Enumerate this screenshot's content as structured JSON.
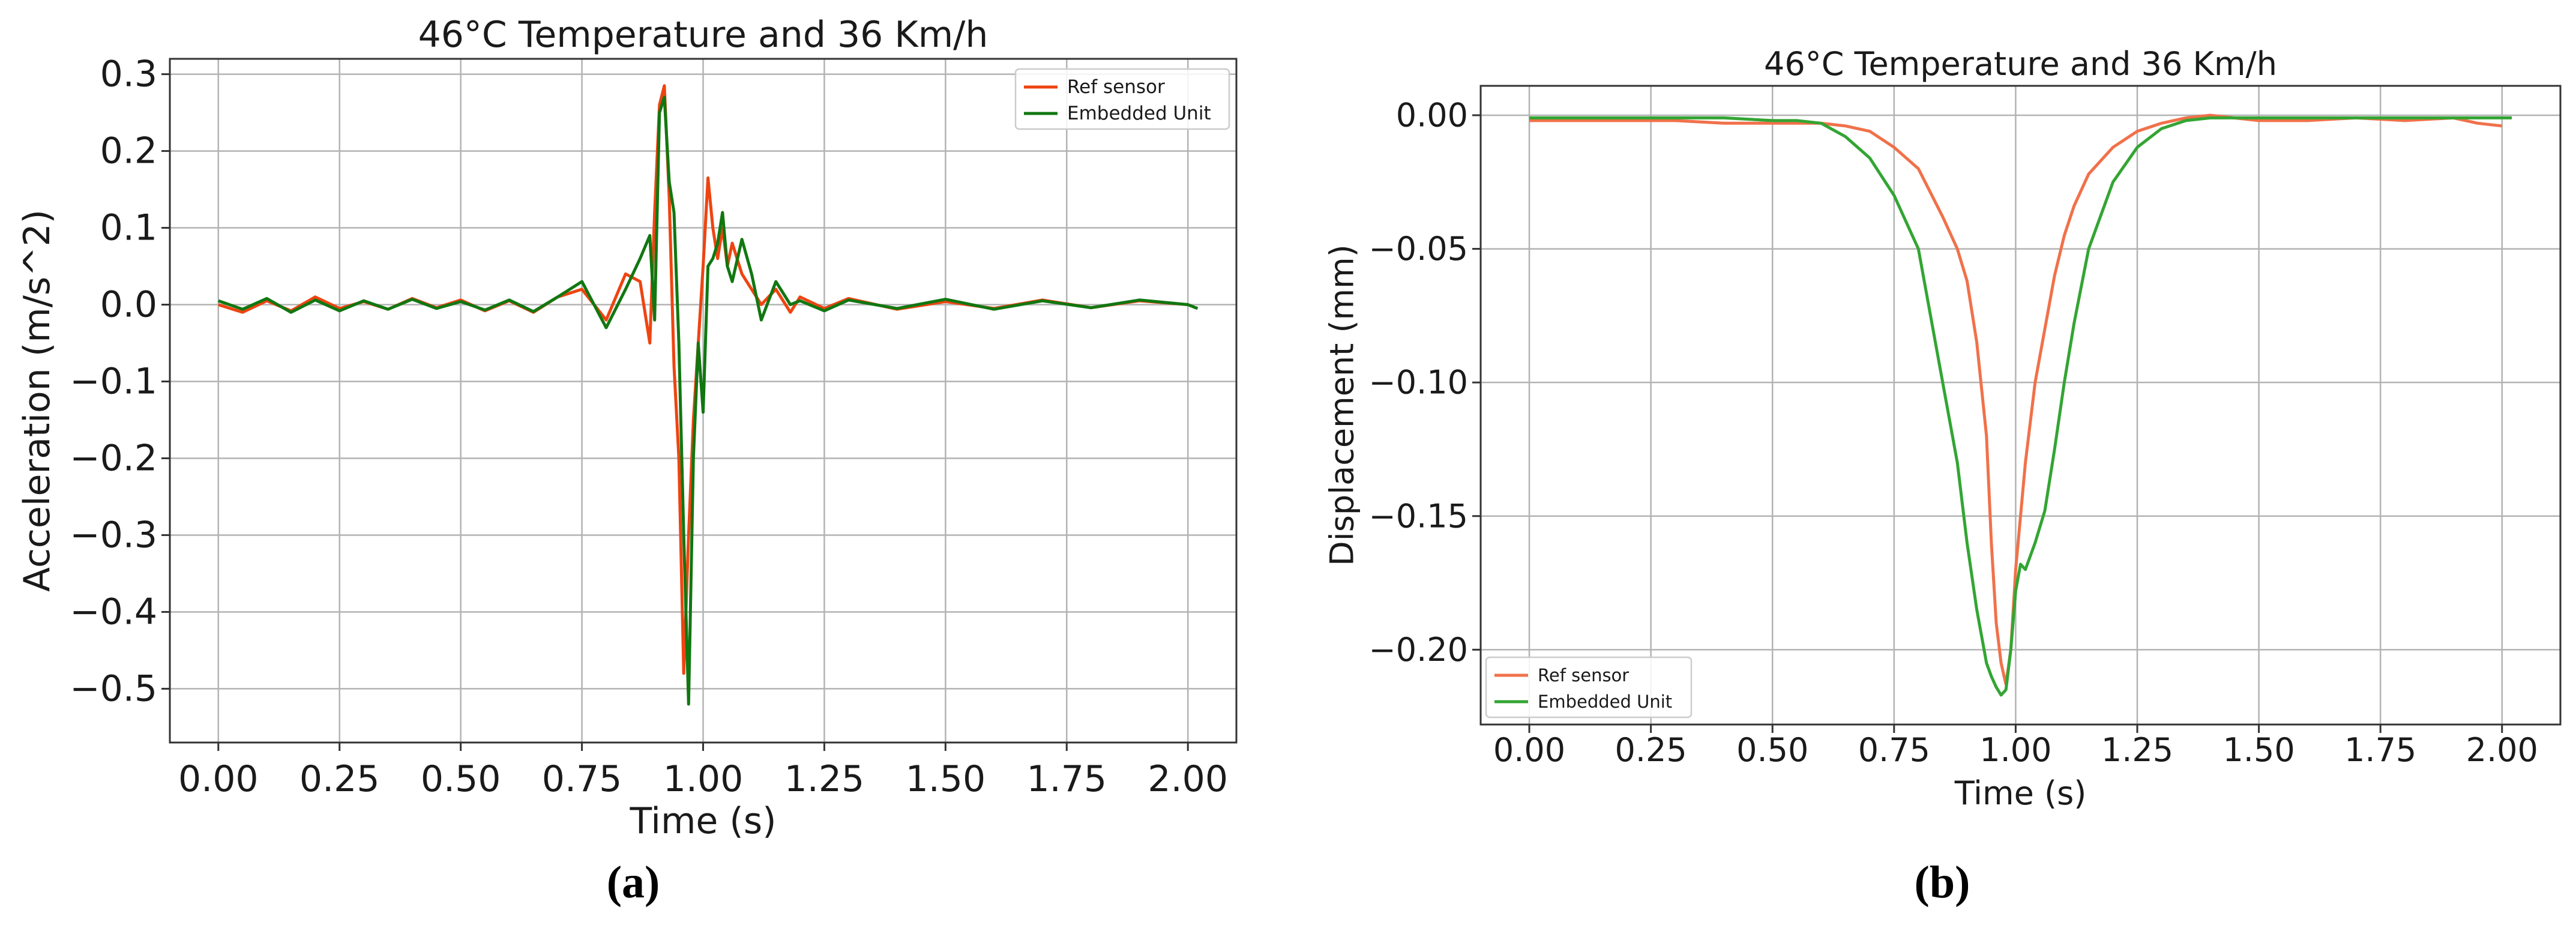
{
  "figure": {
    "panels": [
      {
        "caption": "(a)"
      },
      {
        "caption": "(b)"
      }
    ]
  },
  "colors": {
    "ref_a": "#ee4411",
    "emb_a": "#117711",
    "ref_b": "#f0714a",
    "emb_b": "#33a533",
    "grid": "#b3b3b3"
  },
  "chart_data": [
    {
      "type": "line",
      "title": "46°C Temperature and 36 Km/h",
      "xlabel": "Time (s)",
      "ylabel": "Acceleration (m/s^2)",
      "xlim": [
        -0.1,
        2.1
      ],
      "ylim": [
        -0.57,
        0.32
      ],
      "xticks": [
        0,
        0.25,
        0.5,
        0.75,
        1.0,
        1.25,
        1.5,
        1.75,
        2.0
      ],
      "xtick_labels": [
        "0.00",
        "0.25",
        "0.50",
        "0.75",
        "1.00",
        "1.25",
        "1.50",
        "1.75",
        "2.00"
      ],
      "yticks": [
        0.3,
        0.2,
        0.1,
        0.0,
        -0.1,
        -0.2,
        -0.3,
        -0.4,
        -0.5
      ],
      "ytick_labels": [
        "0.3",
        "0.2",
        "0.1",
        "0.0",
        "−0.1",
        "−0.2",
        "−0.3",
        "−0.4",
        "−0.5"
      ],
      "grid": true,
      "legend_position": "top-right",
      "series": [
        {
          "name": "Ref sensor",
          "x": [
            0.0,
            0.05,
            0.1,
            0.15,
            0.2,
            0.25,
            0.3,
            0.35,
            0.4,
            0.45,
            0.5,
            0.55,
            0.6,
            0.65,
            0.7,
            0.75,
            0.8,
            0.84,
            0.87,
            0.89,
            0.9,
            0.91,
            0.92,
            0.93,
            0.94,
            0.95,
            0.96,
            0.97,
            0.98,
            0.99,
            1.0,
            1.01,
            1.02,
            1.03,
            1.04,
            1.05,
            1.06,
            1.08,
            1.1,
            1.12,
            1.15,
            1.18,
            1.2,
            1.25,
            1.3,
            1.4,
            1.5,
            1.6,
            1.7,
            1.8,
            1.9,
            2.0
          ],
          "y": [
            0.0,
            -0.01,
            0.005,
            -0.008,
            0.01,
            -0.005,
            0.004,
            -0.006,
            0.008,
            -0.004,
            0.006,
            -0.008,
            0.005,
            -0.01,
            0.01,
            0.02,
            -0.02,
            0.04,
            0.03,
            -0.05,
            0.12,
            0.26,
            0.285,
            0.14,
            -0.08,
            -0.2,
            -0.48,
            -0.3,
            -0.15,
            -0.05,
            0.05,
            0.165,
            0.1,
            0.06,
            0.1,
            0.05,
            0.08,
            0.04,
            0.02,
            0.0,
            0.02,
            -0.01,
            0.01,
            -0.005,
            0.008,
            -0.006,
            0.004,
            -0.005,
            0.006,
            -0.004,
            0.005,
            0.0
          ]
        },
        {
          "name": "Embedded Unit",
          "x": [
            0.0,
            0.05,
            0.1,
            0.15,
            0.2,
            0.25,
            0.3,
            0.35,
            0.4,
            0.45,
            0.5,
            0.55,
            0.6,
            0.65,
            0.7,
            0.75,
            0.8,
            0.84,
            0.87,
            0.89,
            0.9,
            0.91,
            0.92,
            0.93,
            0.94,
            0.95,
            0.96,
            0.97,
            0.98,
            0.99,
            1.0,
            1.01,
            1.02,
            1.03,
            1.04,
            1.05,
            1.06,
            1.08,
            1.1,
            1.12,
            1.15,
            1.18,
            1.2,
            1.25,
            1.3,
            1.4,
            1.5,
            1.6,
            1.7,
            1.8,
            1.9,
            2.0,
            2.02
          ],
          "y": [
            0.005,
            -0.006,
            0.008,
            -0.01,
            0.006,
            -0.008,
            0.005,
            -0.006,
            0.007,
            -0.005,
            0.004,
            -0.007,
            0.006,
            -0.009,
            0.01,
            0.03,
            -0.03,
            0.02,
            0.06,
            0.09,
            -0.02,
            0.25,
            0.27,
            0.16,
            0.12,
            -0.05,
            -0.3,
            -0.52,
            -0.2,
            -0.05,
            -0.14,
            0.05,
            0.06,
            0.08,
            0.12,
            0.05,
            0.03,
            0.085,
            0.04,
            -0.02,
            0.03,
            0.0,
            0.005,
            -0.008,
            0.006,
            -0.005,
            0.007,
            -0.006,
            0.005,
            -0.004,
            0.006,
            0.0,
            -0.005
          ]
        }
      ]
    },
    {
      "type": "line",
      "title": "46°C Temperature and 36 Km/h",
      "xlabel": "Time (s)",
      "ylabel": "Displacement (mm)",
      "xlim": [
        -0.1,
        2.12
      ],
      "ylim": [
        -0.228,
        0.011
      ],
      "xticks": [
        0,
        0.25,
        0.5,
        0.75,
        1.0,
        1.25,
        1.5,
        1.75,
        2.0
      ],
      "xtick_labels": [
        "0.00",
        "0.25",
        "0.50",
        "0.75",
        "1.00",
        "1.25",
        "1.50",
        "1.75",
        "2.00"
      ],
      "yticks": [
        0.0,
        -0.05,
        -0.1,
        -0.15,
        -0.2
      ],
      "ytick_labels": [
        "0.00",
        "−0.05",
        "−0.10",
        "−0.15",
        "−0.20"
      ],
      "grid": true,
      "legend_position": "bottom-left",
      "series": [
        {
          "name": "Ref sensor",
          "x": [
            0.0,
            0.1,
            0.2,
            0.3,
            0.4,
            0.5,
            0.55,
            0.6,
            0.65,
            0.7,
            0.75,
            0.8,
            0.85,
            0.88,
            0.9,
            0.92,
            0.94,
            0.95,
            0.96,
            0.97,
            0.98,
            0.99,
            1.0,
            1.01,
            1.02,
            1.04,
            1.06,
            1.08,
            1.1,
            1.12,
            1.15,
            1.2,
            1.25,
            1.3,
            1.35,
            1.4,
            1.5,
            1.6,
            1.7,
            1.8,
            1.9,
            1.95,
            2.0
          ],
          "y": [
            -0.002,
            -0.002,
            -0.002,
            -0.002,
            -0.003,
            -0.003,
            -0.003,
            -0.003,
            -0.004,
            -0.006,
            -0.012,
            -0.02,
            -0.038,
            -0.05,
            -0.062,
            -0.085,
            -0.12,
            -0.16,
            -0.19,
            -0.205,
            -0.213,
            -0.2,
            -0.17,
            -0.15,
            -0.13,
            -0.1,
            -0.08,
            -0.06,
            -0.045,
            -0.034,
            -0.022,
            -0.012,
            -0.006,
            -0.003,
            -0.001,
            0.0,
            -0.002,
            -0.002,
            -0.001,
            -0.002,
            -0.001,
            -0.003,
            -0.004
          ]
        },
        {
          "name": "Embedded Unit",
          "x": [
            0.0,
            0.1,
            0.2,
            0.3,
            0.4,
            0.5,
            0.55,
            0.6,
            0.65,
            0.7,
            0.75,
            0.8,
            0.85,
            0.88,
            0.9,
            0.92,
            0.94,
            0.95,
            0.96,
            0.97,
            0.98,
            0.99,
            1.0,
            1.01,
            1.02,
            1.04,
            1.06,
            1.08,
            1.1,
            1.12,
            1.15,
            1.2,
            1.25,
            1.3,
            1.35,
            1.4,
            1.5,
            1.6,
            1.7,
            1.8,
            1.9,
            2.0,
            2.02
          ],
          "y": [
            -0.001,
            -0.001,
            -0.001,
            -0.001,
            -0.001,
            -0.002,
            -0.002,
            -0.003,
            -0.008,
            -0.016,
            -0.03,
            -0.05,
            -0.1,
            -0.13,
            -0.16,
            -0.185,
            -0.205,
            -0.21,
            -0.214,
            -0.217,
            -0.215,
            -0.2,
            -0.178,
            -0.168,
            -0.17,
            -0.16,
            -0.148,
            -0.125,
            -0.1,
            -0.078,
            -0.05,
            -0.025,
            -0.012,
            -0.005,
            -0.002,
            -0.001,
            -0.001,
            -0.001,
            -0.001,
            -0.001,
            -0.001,
            -0.001,
            -0.001
          ]
        }
      ]
    }
  ]
}
